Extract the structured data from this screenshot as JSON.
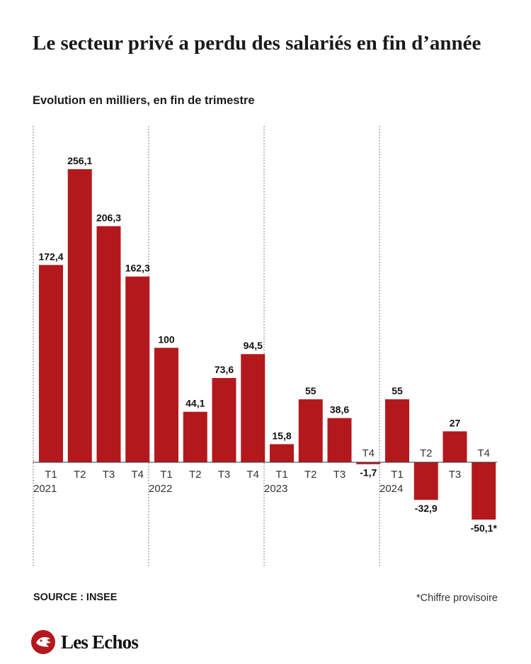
{
  "header": {
    "title": "Le secteur privé a perdu des salariés en fin d’année",
    "subtitle": "Evolution en milliers, en fin de trimestre"
  },
  "footer": {
    "source": "SOURCE : INSEE",
    "note": "*Chiffre provisoire",
    "brand": "Les Echos"
  },
  "colors": {
    "bar": "#b3191c",
    "text": "#1a1a1a"
  },
  "icons": {
    "logo": "les-echos-logo-icon"
  },
  "chart_data": {
    "type": "bar",
    "title": "Le secteur privé a perdu des salariés en fin d’année",
    "subtitle": "Evolution en milliers, en fin de trimestre",
    "categories": [
      "T1",
      "T2",
      "T3",
      "T4",
      "T1",
      "T2",
      "T3",
      "T4",
      "T1",
      "T2",
      "T3",
      "T4",
      "T1",
      "T2",
      "T3",
      "T4"
    ],
    "years": [
      "2021",
      "2022",
      "2023",
      "2024"
    ],
    "values": [
      172.4,
      256.1,
      206.3,
      162.3,
      100,
      44.1,
      73.6,
      94.5,
      15.8,
      55,
      38.6,
      -1.7,
      55,
      -32.9,
      27,
      -50.1
    ],
    "value_labels": [
      "172,4",
      "256,1",
      "206,3",
      "162,3",
      "100",
      "44,1",
      "73,6",
      "94,5",
      "15,8",
      "55",
      "38,6",
      "-1,7",
      "55",
      "-32,9",
      "27",
      "-50,1*"
    ],
    "ylim": [
      -50.1,
      256.1
    ],
    "grid": false,
    "year_separators": true,
    "xlabel": "",
    "ylabel": ""
  }
}
